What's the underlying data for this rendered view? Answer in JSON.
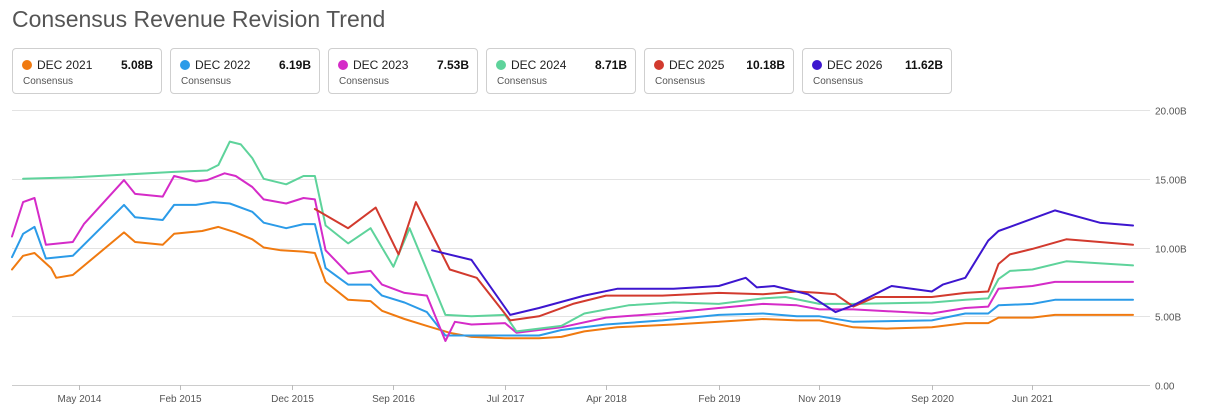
{
  "title": "Consensus Revenue Revision Trend",
  "legend": [
    {
      "name": "DEC 2021",
      "value": "5.08B",
      "sub": "Consensus",
      "color": "#f07a10"
    },
    {
      "name": "DEC 2022",
      "value": "6.19B",
      "sub": "Consensus",
      "color": "#2b9be8"
    },
    {
      "name": "DEC 2023",
      "value": "7.53B",
      "sub": "Consensus",
      "color": "#d52bc8"
    },
    {
      "name": "DEC 2024",
      "value": "8.71B",
      "sub": "Consensus",
      "color": "#5ed39b"
    },
    {
      "name": "DEC 2025",
      "value": "10.18B",
      "sub": "Consensus",
      "color": "#d23a2e"
    },
    {
      "name": "DEC 2026",
      "value": "11.62B",
      "sub": "Consensus",
      "color": "#3d16cf"
    }
  ],
  "chart_data": {
    "type": "line",
    "title": "Consensus Revenue Revision Trend",
    "xlabel": "",
    "ylabel": "",
    "ylim": [
      0,
      20
    ],
    "xlim": [
      "2013-11-01",
      "2022-03-20"
    ],
    "y_ticks": [
      "0.00",
      "5.00B",
      "10.00B",
      "15.00B",
      "20.00B"
    ],
    "y_tick_values": [
      0,
      5,
      10,
      15,
      20
    ],
    "x_ticks": [
      "May 2014",
      "Feb 2015",
      "Dec 2015",
      "Sep 2016",
      "Jul 2017",
      "Apr 2018",
      "Feb 2019",
      "Nov 2019",
      "Sep 2020",
      "Jun 2021"
    ],
    "x_tick_dates": [
      "2014-05-01",
      "2015-02-01",
      "2015-12-01",
      "2016-09-01",
      "2017-07-01",
      "2018-04-01",
      "2019-02-01",
      "2019-11-01",
      "2020-09-01",
      "2021-06-01"
    ],
    "grid": "horizontal",
    "series": [
      {
        "name": "DEC 2021",
        "color": "#f07a10",
        "points": [
          [
            "2013-11-01",
            8.4
          ],
          [
            "2013-12-01",
            9.4
          ],
          [
            "2014-01-01",
            9.6
          ],
          [
            "2014-02-15",
            8.5
          ],
          [
            "2014-03-01",
            7.8
          ],
          [
            "2014-04-15",
            8.0
          ],
          [
            "2014-09-01",
            11.1
          ],
          [
            "2014-10-01",
            10.4
          ],
          [
            "2014-12-15",
            10.2
          ],
          [
            "2015-01-15",
            11.0
          ],
          [
            "2015-04-01",
            11.2
          ],
          [
            "2015-05-15",
            11.5
          ],
          [
            "2015-07-01",
            11.1
          ],
          [
            "2015-08-15",
            10.6
          ],
          [
            "2015-09-15",
            10.0
          ],
          [
            "2015-11-01",
            9.8
          ],
          [
            "2016-01-01",
            9.7
          ],
          [
            "2016-02-01",
            9.6
          ],
          [
            "2016-03-01",
            7.5
          ],
          [
            "2016-05-01",
            6.2
          ],
          [
            "2016-07-01",
            6.1
          ],
          [
            "2016-08-01",
            5.4
          ],
          [
            "2016-10-01",
            4.8
          ],
          [
            "2016-12-01",
            4.3
          ],
          [
            "2017-02-01",
            3.8
          ],
          [
            "2017-04-01",
            3.5
          ],
          [
            "2017-07-01",
            3.4
          ],
          [
            "2017-10-01",
            3.4
          ],
          [
            "2017-12-01",
            3.5
          ],
          [
            "2018-02-01",
            3.9
          ],
          [
            "2018-05-01",
            4.2
          ],
          [
            "2018-10-01",
            4.4
          ],
          [
            "2019-02-01",
            4.6
          ],
          [
            "2019-06-01",
            4.8
          ],
          [
            "2019-09-01",
            4.7
          ],
          [
            "2019-11-01",
            4.7
          ],
          [
            "2020-02-01",
            4.2
          ],
          [
            "2020-05-01",
            4.1
          ],
          [
            "2020-09-01",
            4.2
          ],
          [
            "2020-12-01",
            4.5
          ],
          [
            "2021-02-01",
            4.5
          ],
          [
            "2021-03-01",
            4.9
          ],
          [
            "2021-06-01",
            4.9
          ],
          [
            "2021-08-01",
            5.1
          ],
          [
            "2021-10-01",
            5.1
          ],
          [
            "2022-03-01",
            5.1
          ]
        ]
      },
      {
        "name": "DEC 2022",
        "color": "#2b9be8",
        "points": [
          [
            "2013-11-01",
            9.3
          ],
          [
            "2013-12-01",
            11.0
          ],
          [
            "2014-01-01",
            11.5
          ],
          [
            "2014-02-01",
            9.2
          ],
          [
            "2014-04-15",
            9.4
          ],
          [
            "2014-09-01",
            13.1
          ],
          [
            "2014-10-01",
            12.2
          ],
          [
            "2014-12-15",
            12.0
          ],
          [
            "2015-01-15",
            13.1
          ],
          [
            "2015-03-15",
            13.1
          ],
          [
            "2015-05-01",
            13.3
          ],
          [
            "2015-06-15",
            13.2
          ],
          [
            "2015-08-15",
            12.6
          ],
          [
            "2015-09-15",
            11.8
          ],
          [
            "2015-11-15",
            11.4
          ],
          [
            "2016-01-01",
            11.7
          ],
          [
            "2016-02-01",
            11.7
          ],
          [
            "2016-03-01",
            8.5
          ],
          [
            "2016-05-01",
            7.3
          ],
          [
            "2016-07-01",
            7.3
          ],
          [
            "2016-08-01",
            6.5
          ],
          [
            "2016-10-01",
            6.0
          ],
          [
            "2016-12-01",
            5.3
          ],
          [
            "2017-01-20",
            3.6
          ],
          [
            "2017-04-01",
            3.6
          ],
          [
            "2017-07-01",
            3.6
          ],
          [
            "2017-10-01",
            3.6
          ],
          [
            "2017-12-01",
            4.0
          ],
          [
            "2018-04-01",
            4.4
          ],
          [
            "2018-09-01",
            4.7
          ],
          [
            "2019-02-01",
            5.1
          ],
          [
            "2019-06-01",
            5.2
          ],
          [
            "2019-09-01",
            5.0
          ],
          [
            "2019-11-01",
            5.0
          ],
          [
            "2020-02-01",
            4.6
          ],
          [
            "2020-09-01",
            4.7
          ],
          [
            "2020-12-01",
            5.2
          ],
          [
            "2021-02-01",
            5.2
          ],
          [
            "2021-03-01",
            5.8
          ],
          [
            "2021-06-01",
            5.9
          ],
          [
            "2021-08-01",
            6.2
          ],
          [
            "2021-10-01",
            6.2
          ],
          [
            "2022-03-01",
            6.2
          ]
        ]
      },
      {
        "name": "DEC 2023",
        "color": "#d52bc8",
        "points": [
          [
            "2013-11-01",
            10.8
          ],
          [
            "2013-12-01",
            13.3
          ],
          [
            "2014-01-01",
            13.6
          ],
          [
            "2014-02-01",
            10.2
          ],
          [
            "2014-04-15",
            10.4
          ],
          [
            "2014-05-15",
            11.7
          ],
          [
            "2014-09-01",
            14.9
          ],
          [
            "2014-10-01",
            13.9
          ],
          [
            "2014-12-15",
            13.7
          ],
          [
            "2015-01-15",
            15.2
          ],
          [
            "2015-03-15",
            14.8
          ],
          [
            "2015-04-15",
            14.9
          ],
          [
            "2015-06-01",
            15.4
          ],
          [
            "2015-07-01",
            15.2
          ],
          [
            "2015-08-15",
            14.4
          ],
          [
            "2015-09-15",
            13.5
          ],
          [
            "2015-11-15",
            13.2
          ],
          [
            "2016-01-01",
            13.6
          ],
          [
            "2016-02-01",
            13.5
          ],
          [
            "2016-03-01",
            9.8
          ],
          [
            "2016-05-01",
            8.1
          ],
          [
            "2016-07-01",
            8.3
          ],
          [
            "2016-08-01",
            7.3
          ],
          [
            "2016-10-01",
            6.7
          ],
          [
            "2016-12-01",
            6.5
          ],
          [
            "2017-01-20",
            3.2
          ],
          [
            "2017-02-15",
            4.6
          ],
          [
            "2017-04-01",
            4.4
          ],
          [
            "2017-07-01",
            4.5
          ],
          [
            "2017-08-01",
            3.8
          ],
          [
            "2017-12-01",
            4.2
          ],
          [
            "2018-04-01",
            4.9
          ],
          [
            "2018-09-01",
            5.2
          ],
          [
            "2019-02-01",
            5.6
          ],
          [
            "2019-06-01",
            5.9
          ],
          [
            "2019-09-01",
            5.8
          ],
          [
            "2019-11-01",
            5.5
          ],
          [
            "2020-02-01",
            5.5
          ],
          [
            "2020-09-01",
            5.2
          ],
          [
            "2020-12-01",
            5.6
          ],
          [
            "2021-02-01",
            5.7
          ],
          [
            "2021-03-01",
            7.0
          ],
          [
            "2021-06-01",
            7.2
          ],
          [
            "2021-08-01",
            7.5
          ],
          [
            "2021-10-01",
            7.5
          ],
          [
            "2022-03-01",
            7.5
          ]
        ]
      },
      {
        "name": "DEC 2024",
        "color": "#5ed39b",
        "points": [
          [
            "2013-12-01",
            15.0
          ],
          [
            "2014-04-15",
            15.1
          ],
          [
            "2014-09-01",
            15.3
          ],
          [
            "2015-01-15",
            15.5
          ],
          [
            "2015-04-15",
            15.6
          ],
          [
            "2015-05-15",
            16.0
          ],
          [
            "2015-06-15",
            17.7
          ],
          [
            "2015-07-15",
            17.5
          ],
          [
            "2015-08-15",
            16.5
          ],
          [
            "2015-09-15",
            15.0
          ],
          [
            "2015-11-15",
            14.6
          ],
          [
            "2016-01-01",
            15.2
          ],
          [
            "2016-02-01",
            15.2
          ],
          [
            "2016-03-01",
            11.6
          ],
          [
            "2016-05-01",
            10.3
          ],
          [
            "2016-07-01",
            11.4
          ],
          [
            "2016-09-01",
            8.6
          ],
          [
            "2016-10-15",
            11.4
          ],
          [
            "2017-01-20",
            5.1
          ],
          [
            "2017-04-01",
            5.0
          ],
          [
            "2017-07-01",
            5.1
          ],
          [
            "2017-08-01",
            3.9
          ],
          [
            "2017-12-01",
            4.3
          ],
          [
            "2018-02-01",
            5.2
          ],
          [
            "2018-06-01",
            5.8
          ],
          [
            "2018-10-01",
            6.0
          ],
          [
            "2019-02-01",
            5.9
          ],
          [
            "2019-06-01",
            6.3
          ],
          [
            "2019-08-01",
            6.4
          ],
          [
            "2019-11-01",
            5.9
          ],
          [
            "2020-02-01",
            5.9
          ],
          [
            "2020-09-01",
            6.0
          ],
          [
            "2020-12-01",
            6.2
          ],
          [
            "2021-02-01",
            6.3
          ],
          [
            "2021-03-01",
            7.7
          ],
          [
            "2021-04-01",
            8.3
          ],
          [
            "2021-06-01",
            8.4
          ],
          [
            "2021-09-01",
            9.0
          ],
          [
            "2021-11-01",
            8.9
          ],
          [
            "2022-03-01",
            8.7
          ]
        ]
      },
      {
        "name": "DEC 2025",
        "color": "#d23a2e",
        "points": [
          [
            "2016-02-01",
            12.8
          ],
          [
            "2016-05-01",
            11.4
          ],
          [
            "2016-07-15",
            12.9
          ],
          [
            "2016-09-15",
            9.5
          ],
          [
            "2016-11-01",
            13.3
          ],
          [
            "2017-02-01",
            8.4
          ],
          [
            "2017-04-15",
            7.8
          ],
          [
            "2017-07-15",
            4.7
          ],
          [
            "2017-10-01",
            5.0
          ],
          [
            "2018-01-01",
            5.9
          ],
          [
            "2018-04-01",
            6.5
          ],
          [
            "2018-09-01",
            6.5
          ],
          [
            "2019-02-01",
            6.7
          ],
          [
            "2019-06-01",
            6.6
          ],
          [
            "2019-09-01",
            6.8
          ],
          [
            "2019-11-01",
            6.7
          ],
          [
            "2019-12-15",
            6.6
          ],
          [
            "2020-02-01",
            5.7
          ],
          [
            "2020-04-01",
            6.4
          ],
          [
            "2020-09-01",
            6.4
          ],
          [
            "2020-12-01",
            6.7
          ],
          [
            "2021-02-01",
            6.8
          ],
          [
            "2021-03-01",
            8.8
          ],
          [
            "2021-04-01",
            9.5
          ],
          [
            "2021-06-01",
            9.9
          ],
          [
            "2021-09-01",
            10.6
          ],
          [
            "2021-12-01",
            10.4
          ],
          [
            "2022-03-01",
            10.2
          ]
        ]
      },
      {
        "name": "DEC 2026",
        "color": "#3d16cf",
        "points": [
          [
            "2016-12-15",
            9.8
          ],
          [
            "2017-04-01",
            9.1
          ],
          [
            "2017-07-15",
            5.1
          ],
          [
            "2017-10-01",
            5.6
          ],
          [
            "2018-02-01",
            6.5
          ],
          [
            "2018-05-01",
            7.0
          ],
          [
            "2018-10-01",
            7.0
          ],
          [
            "2019-02-01",
            7.2
          ],
          [
            "2019-04-15",
            7.8
          ],
          [
            "2019-05-15",
            7.1
          ],
          [
            "2019-07-01",
            7.2
          ],
          [
            "2019-10-01",
            6.6
          ],
          [
            "2019-12-15",
            5.3
          ],
          [
            "2020-02-01",
            5.8
          ],
          [
            "2020-05-15",
            7.2
          ],
          [
            "2020-09-01",
            6.8
          ],
          [
            "2020-10-01",
            7.3
          ],
          [
            "2020-12-01",
            7.8
          ],
          [
            "2021-02-01",
            10.5
          ],
          [
            "2021-03-01",
            11.2
          ],
          [
            "2021-04-01",
            11.5
          ],
          [
            "2021-08-01",
            12.7
          ],
          [
            "2021-12-01",
            11.8
          ],
          [
            "2022-03-01",
            11.6
          ]
        ]
      }
    ]
  }
}
